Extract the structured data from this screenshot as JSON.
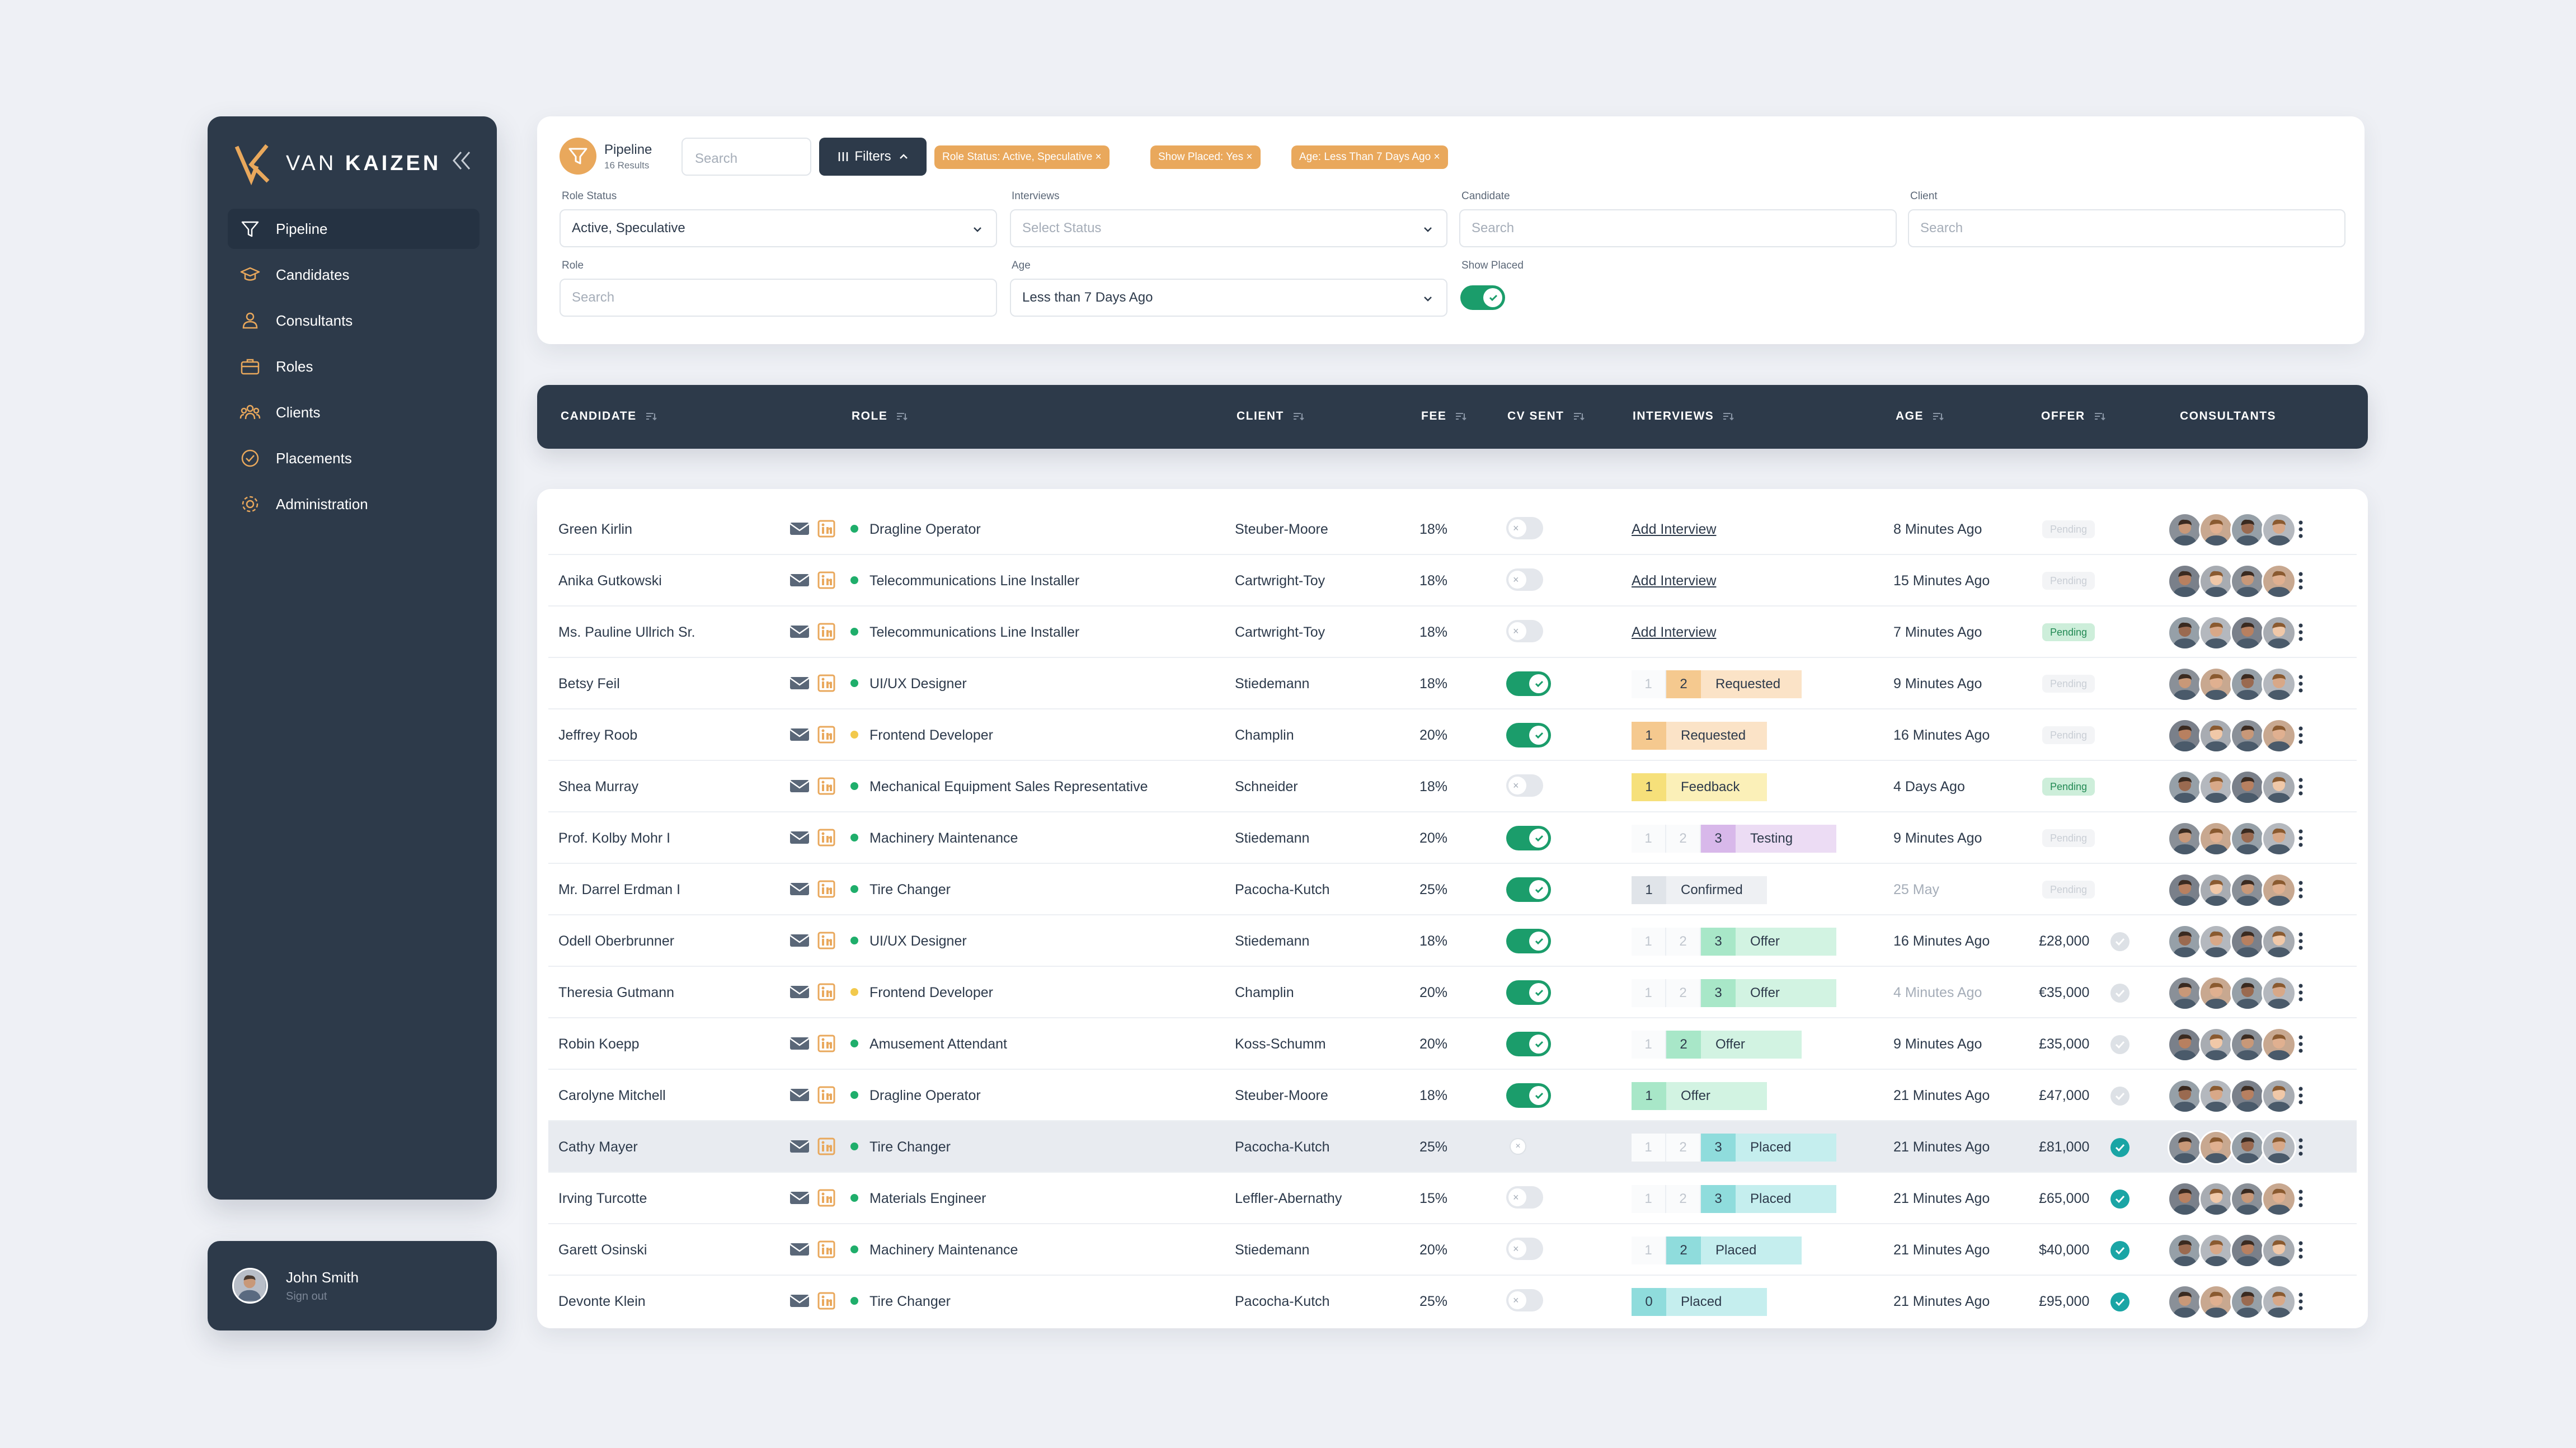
{
  "brand": {
    "name_light": "VAN",
    "name_bold": "KAIZEN"
  },
  "colors": {
    "accent": "#e9a85c",
    "dark": "#2d3a4a",
    "success": "#1fae6b",
    "teal": "#1aa5a5"
  },
  "sidebar": {
    "items": [
      {
        "label": "Pipeline",
        "icon": "filter-icon",
        "active": true
      },
      {
        "label": "Candidates",
        "icon": "graduation-cap-icon"
      },
      {
        "label": "Consultants",
        "icon": "users-icon"
      },
      {
        "label": "Roles",
        "icon": "briefcase-icon"
      },
      {
        "label": "Clients",
        "icon": "group-icon"
      },
      {
        "label": "Placements",
        "icon": "check-circle-icon"
      },
      {
        "label": "Administration",
        "icon": "gear-icon"
      }
    ]
  },
  "user": {
    "name": "John Smith",
    "action": "Sign out"
  },
  "pipeline": {
    "title": "Pipeline",
    "results": "16 Results",
    "search_placeholder": "Search",
    "filters_label": "Filters"
  },
  "chips": [
    "Role Status: Active, Speculative ×",
    "Show Placed: Yes ×",
    "Age: Less Than 7 Days Ago ×"
  ],
  "filters": {
    "role_status": {
      "label": "Role Status",
      "value": "Active, Speculative"
    },
    "interviews": {
      "label": "Interviews",
      "placeholder": "Select Status"
    },
    "candidate": {
      "label": "Candidate",
      "placeholder": "Search"
    },
    "client": {
      "label": "Client",
      "placeholder": "Search"
    },
    "role": {
      "label": "Role",
      "placeholder": "Search"
    },
    "age": {
      "label": "Age",
      "value": "Less than 7 Days Ago"
    },
    "show_placed": {
      "label": "Show Placed",
      "on": true
    }
  },
  "table": {
    "headers": [
      "CANDIDATE",
      "ROLE",
      "CLIENT",
      "FEE",
      "CV SENT",
      "INTERVIEWS",
      "AGE",
      "OFFER",
      "CONSULTANTS"
    ],
    "add_interview": "Add Interview",
    "pending": "Pending",
    "rows": [
      {
        "name": "Green Kirlin",
        "role": "Dragline Operator",
        "dot": "green",
        "client": "Steuber-Moore",
        "fee": "18%",
        "cv": "off",
        "int": {
          "pre": [],
          "n": null,
          "label": null
        },
        "age": "8 Minutes Ago",
        "offer": {
          "type": "pending",
          "on": false
        }
      },
      {
        "name": "Anika Gutkowski",
        "role": "Telecommunications Line Installer",
        "dot": "green",
        "client": "Cartwright-Toy",
        "fee": "18%",
        "cv": "off",
        "int": {
          "pre": [],
          "n": null,
          "label": null
        },
        "age": "15 Minutes Ago",
        "offer": {
          "type": "pending",
          "on": false
        }
      },
      {
        "name": "Ms. Pauline Ullrich Sr.",
        "role": "Telecommunications Line Installer",
        "dot": "green",
        "client": "Cartwright-Toy",
        "fee": "18%",
        "cv": "off",
        "int": {
          "pre": [],
          "n": null,
          "label": null
        },
        "age": "7 Minutes Ago",
        "offer": {
          "type": "pending",
          "on": true
        }
      },
      {
        "name": "Betsy Feil",
        "role": "UI/UX Designer",
        "dot": "green",
        "client": "Stiedemann",
        "fee": "18%",
        "cv": "on",
        "int": {
          "pre": [
            "1"
          ],
          "n": "2",
          "label": "Requested",
          "kind": "requested"
        },
        "age": "9 Minutes Ago",
        "offer": {
          "type": "pending",
          "on": false
        }
      },
      {
        "name": "Jeffrey Roob",
        "role": "Frontend Developer",
        "dot": "yellow",
        "client": "Champlin",
        "fee": "20%",
        "cv": "on",
        "int": {
          "pre": [],
          "n": "1",
          "label": "Requested",
          "kind": "requested"
        },
        "age": "16 Minutes Ago",
        "offer": {
          "type": "pending",
          "on": false
        }
      },
      {
        "name": "Shea Murray",
        "role": "Mechanical Equipment Sales Representative",
        "dot": "green",
        "client": "Schneider",
        "fee": "18%",
        "cv": "off",
        "int": {
          "pre": [],
          "n": "1",
          "label": "Feedback",
          "kind": "feedback"
        },
        "age": "4 Days Ago",
        "offer": {
          "type": "pending",
          "on": true
        }
      },
      {
        "name": "Prof. Kolby Mohr I",
        "role": "Machinery Maintenance",
        "dot": "green",
        "client": "Stiedemann",
        "fee": "20%",
        "cv": "on",
        "int": {
          "pre": [
            "1",
            "2"
          ],
          "n": "3",
          "label": "Testing",
          "kind": "testing"
        },
        "age": "9 Minutes Ago",
        "offer": {
          "type": "pending",
          "on": false
        }
      },
      {
        "name": "Mr. Darrel Erdman I",
        "role": "Tire Changer",
        "dot": "green",
        "client": "Pacocha-Kutch",
        "fee": "25%",
        "cv": "on",
        "int": {
          "pre": [],
          "n": "1",
          "label": "Confirmed",
          "kind": "confirmed"
        },
        "age": "25 May",
        "age_muted": true,
        "offer": {
          "type": "pending",
          "on": false
        }
      },
      {
        "name": "Odell Oberbrunner",
        "role": "UI/UX Designer",
        "dot": "green",
        "client": "Stiedemann",
        "fee": "18%",
        "cv": "on",
        "int": {
          "pre": [
            "1",
            "2"
          ],
          "n": "3",
          "label": "Offer",
          "kind": "offer"
        },
        "age": "16 Minutes Ago",
        "offer": {
          "type": "amount",
          "value": "£28,000",
          "done": false
        }
      },
      {
        "name": "Theresia Gutmann",
        "role": "Frontend Developer",
        "dot": "yellow",
        "client": "Champlin",
        "fee": "20%",
        "cv": "on",
        "int": {
          "pre": [
            "1",
            "2"
          ],
          "n": "3",
          "label": "Offer",
          "kind": "offer"
        },
        "age": "4 Minutes Ago",
        "age_muted": true,
        "offer": {
          "type": "amount",
          "value": "€35,000",
          "done": false
        }
      },
      {
        "name": "Robin Koepp",
        "role": "Amusement Attendant",
        "dot": "green",
        "client": "Koss-Schumm",
        "fee": "20%",
        "cv": "on",
        "int": {
          "pre": [
            "1"
          ],
          "n": "2",
          "label": "Offer",
          "kind": "offer"
        },
        "age": "9 Minutes Ago",
        "offer": {
          "type": "amount",
          "value": "£35,000",
          "done": false
        }
      },
      {
        "name": "Carolyne Mitchell",
        "role": "Dragline Operator",
        "dot": "green",
        "client": "Steuber-Moore",
        "fee": "18%",
        "cv": "on",
        "int": {
          "pre": [],
          "n": "1",
          "label": "Offer",
          "kind": "offer"
        },
        "age": "21 Minutes Ago",
        "offer": {
          "type": "amount",
          "value": "£47,000",
          "done": false
        }
      },
      {
        "name": "Cathy Mayer",
        "role": "Tire Changer",
        "dot": "green",
        "client": "Pacocha-Kutch",
        "fee": "25%",
        "cv": "x",
        "highlight": true,
        "int": {
          "pre": [
            "1",
            "2"
          ],
          "n": "3",
          "label": "Placed",
          "kind": "placed"
        },
        "age": "21 Minutes Ago",
        "offer": {
          "type": "amount",
          "value": "£81,000",
          "done": true
        }
      },
      {
        "name": "Irving Turcotte",
        "role": "Materials Engineer",
        "dot": "green",
        "client": "Leffler-Abernathy",
        "fee": "15%",
        "cv": "off",
        "int": {
          "pre": [
            "1",
            "2"
          ],
          "n": "3",
          "label": "Placed",
          "kind": "placed"
        },
        "age": "21 Minutes Ago",
        "offer": {
          "type": "amount",
          "value": "£65,000",
          "done": true
        }
      },
      {
        "name": "Garett Osinski",
        "role": "Machinery Maintenance",
        "dot": "green",
        "client": "Stiedemann",
        "fee": "20%",
        "cv": "off",
        "int": {
          "pre": [
            "1"
          ],
          "n": "2",
          "label": "Placed",
          "kind": "placed"
        },
        "age": "21 Minutes Ago",
        "offer": {
          "type": "amount",
          "value": "$40,000",
          "done": true
        }
      },
      {
        "name": "Devonte Klein",
        "role": "Tire Changer",
        "dot": "green",
        "client": "Pacocha-Kutch",
        "fee": "25%",
        "cv": "off",
        "int": {
          "pre": [],
          "n": "0",
          "label": "Placed",
          "kind": "placed"
        },
        "age": "21 Minutes Ago",
        "offer": {
          "type": "amount",
          "value": "£95,000",
          "done": true
        }
      }
    ]
  }
}
